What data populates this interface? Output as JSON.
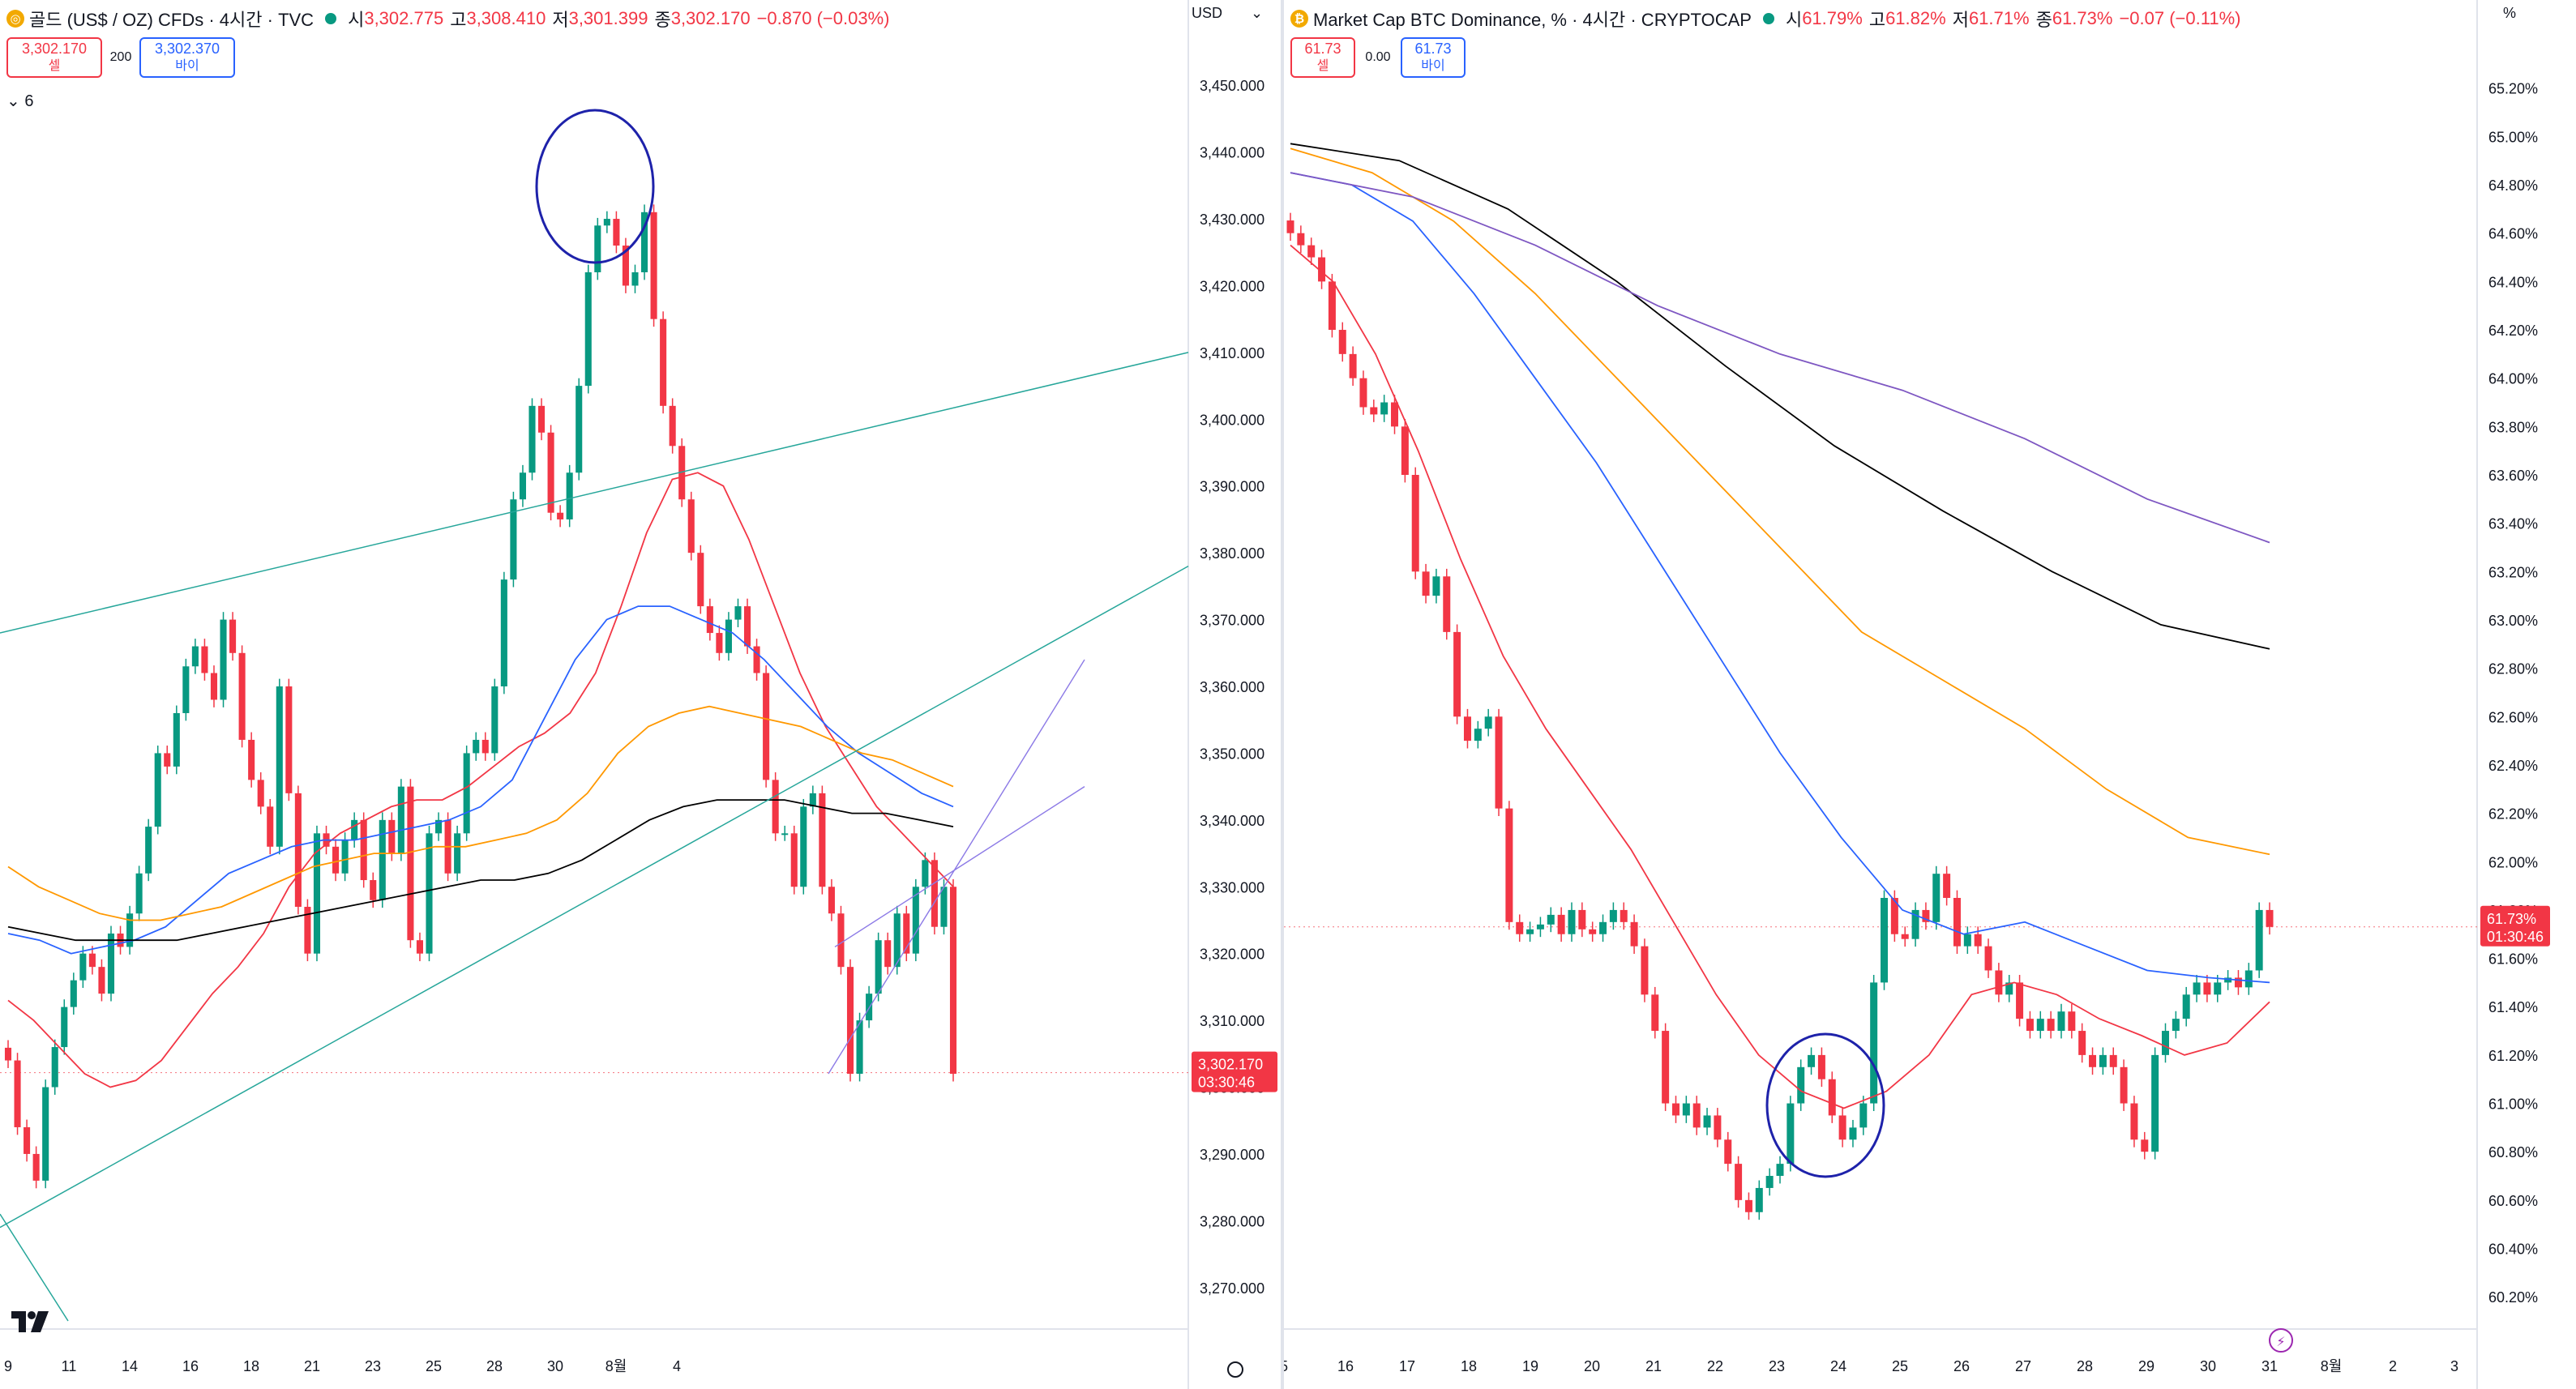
{
  "left": {
    "symbol_icon": "gold-coin-icon",
    "title": "골드 (US$ / OZ) CFDs · 4시간 · TVC",
    "ohlc": {
      "o_label": "시",
      "o": "3,302.775",
      "h_label": "고",
      "h": "3,308.410",
      "l_label": "저",
      "l": "3,301.399",
      "c_label": "종",
      "c": "3,302.170",
      "change": "−0.870 (−0.03%)"
    },
    "sell": {
      "price": "3,302.170",
      "label": "셀"
    },
    "spread": "200",
    "buy": {
      "price": "3,302.370",
      "label": "바이"
    },
    "indicator_toggle": "6",
    "currency": "USD",
    "price_tag": {
      "price": "3,302.170",
      "countdown": "03:30:46"
    },
    "x_ticks": [
      "9",
      "11",
      "14",
      "16",
      "18",
      "21",
      "23",
      "25",
      "28",
      "30",
      "8월",
      "4"
    ]
  },
  "right": {
    "symbol_icon": "bitcoin-icon",
    "title": "Market Cap BTC Dominance, % · 4시간 · CRYPTOCAP",
    "ohlc": {
      "o_label": "시",
      "o": "61.79%",
      "h_label": "고",
      "h": "61.82%",
      "l_label": "저",
      "l": "61.71%",
      "c_label": "종",
      "c": "61.73%",
      "change": "−0.07 (−0.11%)"
    },
    "sell": {
      "price": "61.73",
      "label": "셀"
    },
    "spread": "0.00",
    "buy": {
      "price": "61.73",
      "label": "바이"
    },
    "unit": "%",
    "price_tag": {
      "price": "61.73%",
      "countdown": "01:30:46"
    },
    "x_ticks": [
      "5",
      "16",
      "17",
      "18",
      "19",
      "20",
      "21",
      "22",
      "23",
      "24",
      "25",
      "26",
      "27",
      "28",
      "29",
      "30",
      "31",
      "8월",
      "2",
      "3"
    ]
  },
  "colors": {
    "up": "#089981",
    "down": "#f23645",
    "ma_red": "#f23645",
    "ma_blue": "#2962ff",
    "ma_orange": "#ff9800",
    "ma_black": "#000000",
    "ma_purple": "#7e57c2",
    "annotation": "#1e22aa"
  },
  "chart_data": [
    {
      "type": "candlestick",
      "title": "골드 (US$ / OZ) CFDs · 4시간 · TVC",
      "ylim": [
        3265,
        3455
      ],
      "yticks": [
        "3,450.000",
        "3,440.000",
        "3,430.000",
        "3,420.000",
        "3,410.000",
        "3,400.000",
        "3,390.000",
        "3,380.000",
        "3,370.000",
        "3,360.000",
        "3,350.000",
        "3,340.000",
        "3,330.000",
        "3,320.000",
        "3,310.000",
        "3,300.000",
        "3,290.000",
        "3,280.000",
        "3,270.000"
      ],
      "last_price": 3302.17,
      "closes": [
        3304,
        3294,
        3290,
        3286,
        3300,
        3306,
        3312,
        3316,
        3320,
        3318,
        3314,
        3323,
        3321,
        3326,
        3332,
        3339,
        3350,
        3348,
        3356,
        3363,
        3366,
        3362,
        3358,
        3370,
        3365,
        3352,
        3346,
        3342,
        3336,
        3360,
        3344,
        3327,
        3320,
        3338,
        3336,
        3332,
        3337,
        3340,
        3331,
        3328,
        3340,
        3335,
        3345,
        3322,
        3320,
        3338,
        3340,
        3332,
        3338,
        3350,
        3352,
        3350,
        3360,
        3376,
        3388,
        3392,
        3402,
        3398,
        3386,
        3385,
        3392,
        3405,
        3422,
        3429,
        3430,
        3426,
        3420,
        3422,
        3431,
        3415,
        3402,
        3396,
        3388,
        3380,
        3372,
        3368,
        3365,
        3370,
        3372,
        3366,
        3362,
        3346,
        3338,
        3338,
        3330,
        3342,
        3344,
        3330,
        3326,
        3318,
        3302,
        3310,
        3314,
        3322,
        3318,
        3326,
        3320,
        3330,
        3334,
        3324,
        3330,
        3302
      ],
      "series": [
        {
          "name": "",
          "color": "#f23645",
          "values": [
            3313,
            3310,
            3306,
            3302,
            3300,
            3301,
            3304,
            3309,
            3314,
            3318,
            3323,
            3330,
            3335,
            3338,
            3340,
            3342,
            3343,
            3343,
            3345,
            3348,
            3351,
            3353,
            3356,
            3362,
            3372,
            3383,
            3391,
            3392,
            3390,
            3382,
            3372,
            3362,
            3354,
            3348,
            3342,
            3338,
            3334,
            3330
          ]
        },
        {
          "name": "",
          "color": "#2962ff",
          "values": [
            3323,
            3322,
            3320,
            3321,
            3322,
            3324,
            3328,
            3332,
            3334,
            3336,
            3337,
            3337,
            3338,
            3339,
            3340,
            3342,
            3346,
            3355,
            3364,
            3370,
            3372,
            3372,
            3370,
            3368,
            3364,
            3359,
            3354,
            3350,
            3347,
            3344,
            3342
          ]
        },
        {
          "name": "",
          "color": "#ff9800",
          "values": [
            3333,
            3330,
            3328,
            3326,
            3325,
            3325,
            3326,
            3327,
            3329,
            3331,
            3333,
            3334,
            3335,
            3335,
            3336,
            3336,
            3337,
            3338,
            3340,
            3344,
            3350,
            3354,
            3356,
            3357,
            3356,
            3355,
            3354,
            3352,
            3350,
            3349,
            3347,
            3345
          ]
        },
        {
          "name": "",
          "color": "#000000",
          "values": [
            3324,
            3323,
            3322,
            3322,
            3322,
            3322,
            3323,
            3324,
            3325,
            3326,
            3327,
            3328,
            3329,
            3330,
            3331,
            3331,
            3332,
            3334,
            3337,
            3340,
            3342,
            3343,
            3343,
            3343,
            3342,
            3341,
            3341,
            3340,
            3339
          ]
        }
      ]
    },
    {
      "type": "candlestick",
      "title": "Market Cap BTC Dominance, % · 4시간 · CRYPTOCAP",
      "ylim": [
        60.1,
        65.35
      ],
      "yticks": [
        "65.20%",
        "65.00%",
        "64.80%",
        "64.60%",
        "64.40%",
        "64.20%",
        "64.00%",
        "63.80%",
        "63.60%",
        "63.40%",
        "63.20%",
        "63.00%",
        "62.80%",
        "62.60%",
        "62.40%",
        "62.20%",
        "62.00%",
        "61.80%",
        "61.60%",
        "61.40%",
        "61.20%",
        "61.00%",
        "60.80%",
        "60.60%",
        "60.40%",
        "60.20%"
      ],
      "last_price": 61.73,
      "closes": [
        64.6,
        64.55,
        64.5,
        64.4,
        64.2,
        64.1,
        64.0,
        63.88,
        63.85,
        63.9,
        63.8,
        63.6,
        63.2,
        63.1,
        63.18,
        62.95,
        62.6,
        62.5,
        62.55,
        62.6,
        62.22,
        61.75,
        61.7,
        61.72,
        61.74,
        61.78,
        61.7,
        61.8,
        61.72,
        61.7,
        61.75,
        61.8,
        61.75,
        61.65,
        61.45,
        61.3,
        61.0,
        60.95,
        61.0,
        60.9,
        60.95,
        60.85,
        60.75,
        60.6,
        60.55,
        60.65,
        60.7,
        60.75,
        61.0,
        61.15,
        61.2,
        61.1,
        60.95,
        60.85,
        60.9,
        61.0,
        61.5,
        61.85,
        61.7,
        61.68,
        61.8,
        61.75,
        61.95,
        61.85,
        61.65,
        61.7,
        61.65,
        61.55,
        61.45,
        61.5,
        61.35,
        61.3,
        61.35,
        61.3,
        61.38,
        61.3,
        61.2,
        61.15,
        61.2,
        61.15,
        61.0,
        60.85,
        60.8,
        61.2,
        61.3,
        61.35,
        61.45,
        61.5,
        61.45,
        61.5,
        61.52,
        61.48,
        61.55,
        61.8,
        61.73
      ],
      "series": [
        {
          "name": "",
          "color": "#f23645",
          "values": [
            64.55,
            64.4,
            64.1,
            63.7,
            63.25,
            62.85,
            62.55,
            62.3,
            62.05,
            61.75,
            61.45,
            61.2,
            61.05,
            60.98,
            61.05,
            61.2,
            61.45,
            61.5,
            61.45,
            61.35,
            61.28,
            61.2,
            61.25,
            61.42
          ]
        },
        {
          "name": "",
          "color": "#2962ff",
          "values": [
            64.85,
            64.8,
            64.65,
            64.35,
            64.0,
            63.65,
            63.25,
            62.85,
            62.45,
            62.1,
            61.8,
            61.7,
            61.75,
            61.65,
            61.55,
            61.52,
            61.5
          ]
        },
        {
          "name": "",
          "color": "#ff9800",
          "values": [
            64.95,
            64.85,
            64.65,
            64.35,
            64.0,
            63.65,
            63.3,
            62.95,
            62.75,
            62.55,
            62.3,
            62.1,
            62.03
          ]
        },
        {
          "name": "",
          "color": "#000000",
          "values": [
            64.97,
            64.9,
            64.7,
            64.4,
            64.05,
            63.72,
            63.45,
            63.2,
            62.98,
            62.88
          ]
        },
        {
          "name": "",
          "color": "#7e57c2",
          "values": [
            64.85,
            64.75,
            64.55,
            64.3,
            64.1,
            63.95,
            63.75,
            63.5,
            63.32
          ]
        }
      ]
    }
  ]
}
